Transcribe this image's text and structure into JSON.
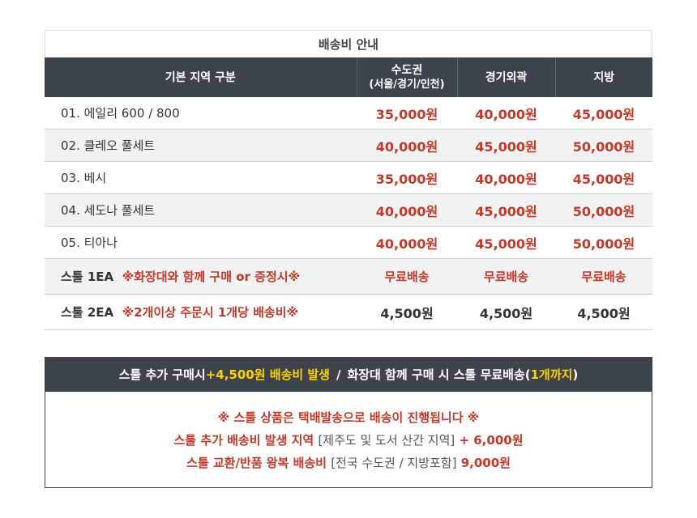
{
  "table": {
    "title": "배송비 안내",
    "headers": {
      "region": "기본 지역 구분",
      "metro": "수도권",
      "metro_sub": "(서울/경기/인천)",
      "gyeonggi_outer": "경기외곽",
      "provinces": "지방"
    },
    "rows": [
      {
        "name": "01. 에일리 600 / 800",
        "note": "",
        "metro": "35,000원",
        "outer": "40,000원",
        "provinces": "45,000원"
      },
      {
        "name": "02. 클레오 풀세트",
        "note": "",
        "metro": "40,000원",
        "outer": "45,000원",
        "provinces": "50,000원"
      },
      {
        "name": "03. 베시",
        "note": "",
        "metro": "35,000원",
        "outer": "40,000원",
        "provinces": "45,000원"
      },
      {
        "name": "04. 세도나 풀세트",
        "note": "",
        "metro": "40,000원",
        "outer": "45,000원",
        "provinces": "50,000원"
      },
      {
        "name": "05. 티아나",
        "note": "",
        "metro": "40,000원",
        "outer": "45,000원",
        "provinces": "50,000원"
      },
      {
        "name": "스툴 1EA",
        "note": "※화장대와 함께 구매 or 증정시※",
        "metro": "무료배송",
        "outer": "무료배송",
        "provinces": "무료배송"
      },
      {
        "name": "스툴 2EA",
        "note": "※2개이상 주문시 1개당 배송비※",
        "metro": "4,500원",
        "outer": "4,500원",
        "provinces": "4,500원"
      }
    ]
  },
  "notice": {
    "head_part1": "스툴 추가 구매시 ",
    "head_highlight1": "+4,500원 배송비 발생",
    "head_sep": "/",
    "head_part2": "화장대 함께 구매 시 스툴 무료배송(",
    "head_highlight2": "1개까지",
    "head_part3": ")",
    "line1": "※ 스툴 상품은 택배발송으로 배송이 진행됩니다 ※",
    "line2_label": "스툴 추가 배송비 발생 지역",
    "line2_detail": "[제주도 및 도서 산간 지역]",
    "line2_amount": "+ 6,000원",
    "line3_label": "스툴 교환/반품 왕복 배송비",
    "line3_detail": "[전국 수도권 / 지방포함]",
    "line3_amount": "9,000원"
  }
}
